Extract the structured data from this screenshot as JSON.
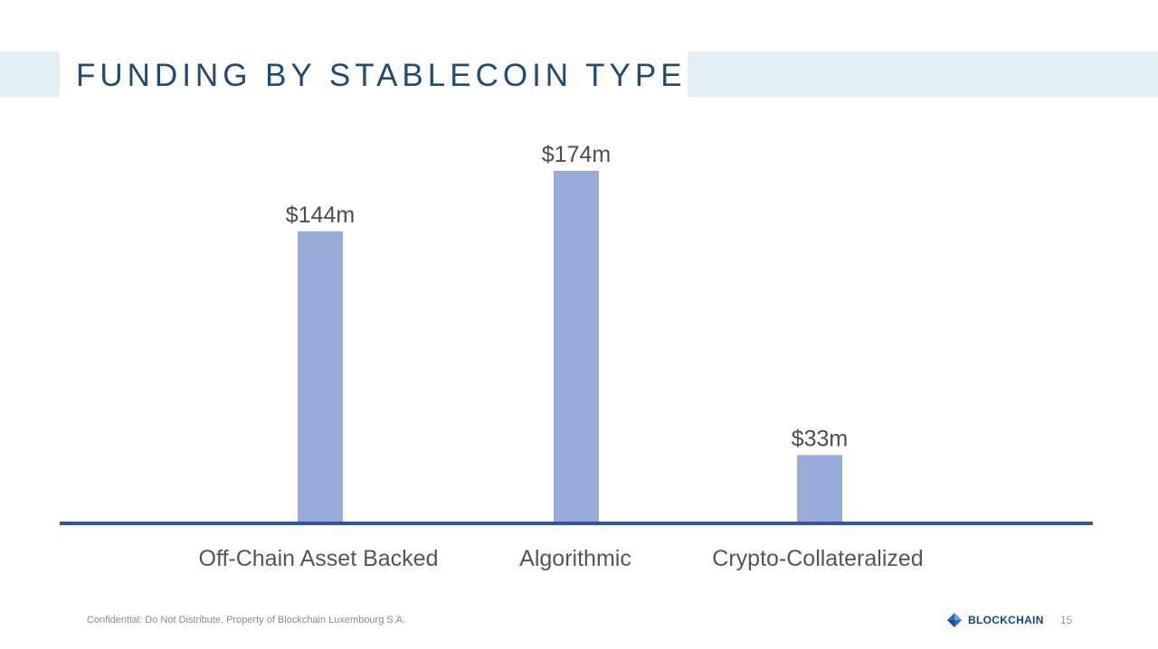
{
  "slide": {
    "title": "FUNDING BY STABLECOIN TYPE",
    "footer_note": "Confidential: Do Not Distribute. Property of Blockchain Luxembourg S.A.",
    "brand_name": "BLOCKCHAIN",
    "page_number": "15"
  },
  "colors": {
    "bar": "#98aad8",
    "axis": "#2f55a5",
    "title": "#234b72",
    "band": "#e4eef5"
  },
  "icons": {
    "brand": "blockchain-logo-icon"
  },
  "chart_data": {
    "type": "bar",
    "categories": [
      "Off-Chain Asset Backed",
      "Algorithmic",
      "Crypto-Collateralized"
    ],
    "values": [
      144,
      174,
      33
    ],
    "data_labels": [
      "$144m",
      "$174m",
      "$33m"
    ],
    "title": "",
    "xlabel": "",
    "ylabel": "",
    "ylim": [
      0,
      174
    ],
    "grid": false,
    "legend": "none",
    "y_axis_visible": false
  }
}
